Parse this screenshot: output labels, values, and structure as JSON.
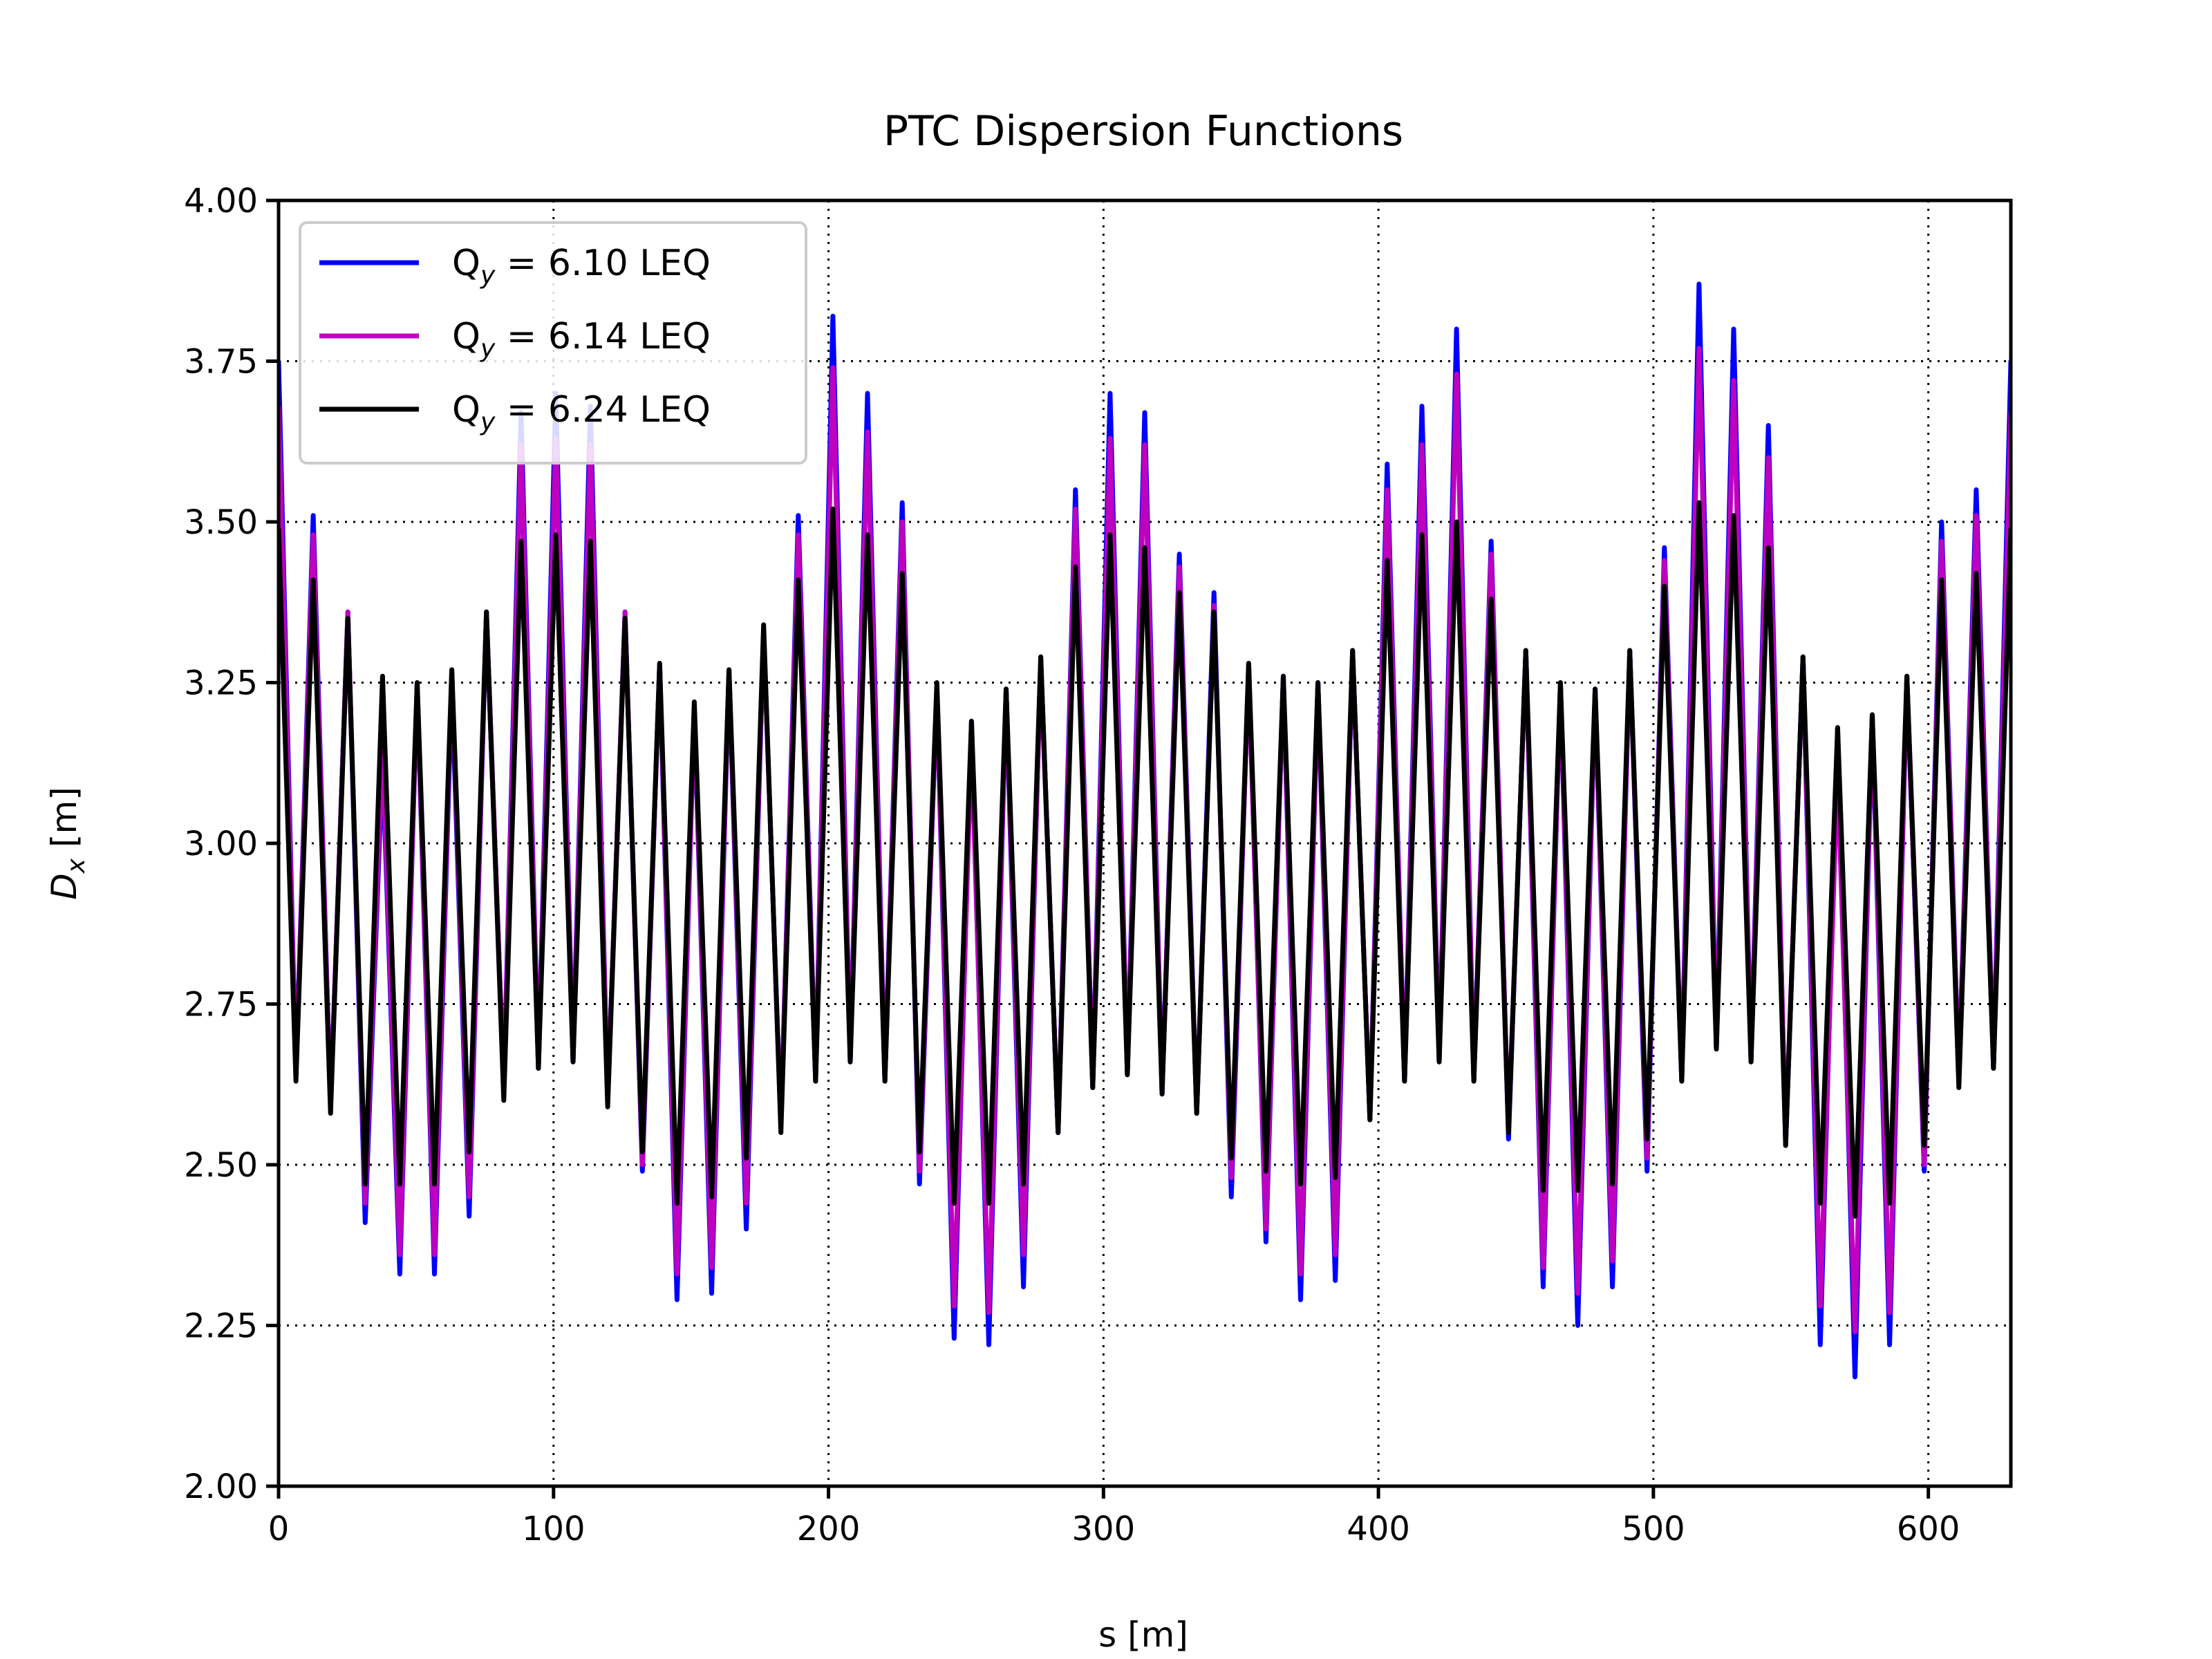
{
  "chart_data": {
    "type": "line",
    "title": "PTC Dispersion Functions",
    "xlabel": "s [m]",
    "ylabel": "D_x [m]",
    "ylabel_parts": {
      "base": "D",
      "sub": "x",
      "unit": " [m]"
    },
    "xlim": [
      0,
      630
    ],
    "ylim": [
      2.0,
      4.0
    ],
    "xticks": [
      0,
      100,
      200,
      300,
      400,
      500,
      600
    ],
    "xtick_labels": [
      "0",
      "100",
      "200",
      "300",
      "400",
      "500",
      "600"
    ],
    "yticks": [
      2.0,
      2.25,
      2.5,
      2.75,
      3.0,
      3.25,
      3.5,
      3.75,
      4.0
    ],
    "ytick_labels": [
      "2.00",
      "2.25",
      "2.50",
      "2.75",
      "3.00",
      "3.25",
      "3.50",
      "3.75",
      "4.00"
    ],
    "grid": true,
    "legend_position": "top-left",
    "cell_length": 6.3,
    "peaks": [
      [
        3.75,
        3.68,
        3.49
      ],
      [
        2.64,
        2.64,
        2.63
      ],
      [
        3.51,
        3.48,
        3.41
      ],
      [
        2.59,
        2.59,
        2.58
      ],
      [
        3.36,
        3.36,
        3.35
      ],
      [
        2.41,
        2.44,
        2.47
      ],
      [
        3.13,
        3.15,
        3.26
      ],
      [
        2.33,
        2.36,
        2.47
      ],
      [
        3.25,
        3.25,
        3.25
      ],
      [
        2.33,
        2.36,
        2.47
      ],
      [
        3.25,
        3.27,
        3.27
      ],
      [
        2.42,
        2.45,
        2.52
      ],
      [
        3.36,
        3.36,
        3.36
      ],
      [
        2.62,
        2.62,
        2.6
      ],
      [
        3.67,
        3.62,
        3.47
      ],
      [
        2.65,
        2.65,
        2.65
      ],
      [
        3.7,
        3.63,
        3.48
      ],
      [
        2.66,
        2.66,
        2.66
      ],
      [
        3.68,
        3.62,
        3.47
      ],
      [
        2.6,
        2.6,
        2.59
      ],
      [
        3.36,
        3.36,
        3.35
      ],
      [
        2.49,
        2.5,
        2.52
      ],
      [
        3.28,
        3.28,
        3.28
      ],
      [
        2.29,
        2.33,
        2.44
      ],
      [
        3.21,
        3.21,
        3.22
      ],
      [
        2.3,
        2.34,
        2.45
      ],
      [
        3.27,
        3.27,
        3.27
      ],
      [
        2.4,
        2.44,
        2.51
      ],
      [
        3.33,
        3.33,
        3.34
      ],
      [
        2.56,
        2.56,
        2.55
      ],
      [
        3.51,
        3.48,
        3.41
      ],
      [
        2.63,
        2.63,
        2.63
      ],
      [
        3.82,
        3.74,
        3.52
      ],
      [
        2.66,
        2.66,
        2.66
      ],
      [
        3.7,
        3.64,
        3.48
      ],
      [
        2.63,
        2.63,
        2.63
      ],
      [
        3.53,
        3.5,
        3.42
      ],
      [
        2.47,
        2.49,
        2.52
      ],
      [
        3.24,
        3.24,
        3.25
      ],
      [
        2.23,
        2.28,
        2.44
      ],
      [
        3.19,
        3.16,
        3.19
      ],
      [
        2.22,
        2.27,
        2.44
      ],
      [
        3.24,
        3.24,
        3.24
      ],
      [
        2.31,
        2.36,
        2.47
      ],
      [
        3.29,
        3.28,
        3.29
      ],
      [
        2.55,
        2.55,
        2.55
      ],
      [
        3.55,
        3.52,
        3.43
      ],
      [
        2.62,
        2.62,
        2.62
      ],
      [
        3.7,
        3.63,
        3.48
      ],
      [
        2.64,
        2.64,
        2.64
      ],
      [
        3.67,
        3.62,
        3.46
      ],
      [
        2.61,
        2.61,
        2.61
      ],
      [
        3.45,
        3.43,
        3.39
      ],
      [
        2.58,
        2.58,
        2.58
      ],
      [
        3.39,
        3.37,
        3.36
      ],
      [
        2.45,
        2.48,
        2.51
      ],
      [
        3.28,
        3.27,
        3.28
      ],
      [
        2.38,
        2.4,
        2.49
      ],
      [
        3.26,
        3.26,
        3.26
      ],
      [
        2.29,
        2.33,
        2.47
      ],
      [
        3.25,
        3.25,
        3.25
      ],
      [
        2.32,
        2.36,
        2.48
      ],
      [
        3.3,
        3.3,
        3.3
      ],
      [
        2.57,
        2.57,
        2.57
      ],
      [
        3.59,
        3.55,
        3.44
      ],
      [
        2.63,
        2.63,
        2.63
      ],
      [
        3.68,
        3.62,
        3.48
      ],
      [
        2.66,
        2.66,
        2.66
      ],
      [
        3.8,
        3.73,
        3.5
      ],
      [
        2.63,
        2.63,
        2.63
      ],
      [
        3.47,
        3.45,
        3.38
      ],
      [
        2.54,
        2.55,
        2.55
      ],
      [
        3.3,
        3.3,
        3.3
      ],
      [
        2.31,
        2.34,
        2.46
      ],
      [
        3.25,
        3.25,
        3.25
      ],
      [
        2.25,
        2.3,
        2.46
      ],
      [
        3.24,
        3.24,
        3.24
      ],
      [
        2.31,
        2.35,
        2.47
      ],
      [
        3.3,
        3.3,
        3.3
      ],
      [
        2.49,
        2.51,
        2.54
      ],
      [
        3.46,
        3.44,
        3.4
      ],
      [
        2.63,
        2.63,
        2.63
      ],
      [
        3.87,
        3.77,
        3.53
      ],
      [
        2.68,
        2.68,
        2.68
      ],
      [
        3.8,
        3.72,
        3.51
      ],
      [
        2.66,
        2.66,
        2.66
      ],
      [
        3.65,
        3.6,
        3.46
      ],
      [
        2.53,
        2.54,
        2.53
      ],
      [
        3.29,
        3.29,
        3.29
      ],
      [
        2.22,
        2.28,
        2.44
      ],
      [
        3.18,
        3.12,
        3.18
      ],
      [
        2.17,
        2.24,
        2.42
      ],
      [
        3.2,
        3.2,
        3.2
      ],
      [
        2.22,
        2.27,
        2.44
      ],
      [
        3.26,
        3.26,
        3.26
      ],
      [
        2.49,
        2.5,
        2.53
      ],
      [
        3.5,
        3.47,
        3.41
      ],
      [
        2.63,
        2.63,
        2.62
      ],
      [
        3.55,
        3.51,
        3.42
      ],
      [
        2.65,
        2.65,
        2.65
      ],
      [
        3.75,
        3.67,
        3.49
      ],
      [
        2.66,
        2.66,
        2.65
      ]
    ],
    "series": [
      {
        "name": "Q_y = 6.10 LEQ",
        "label_parts": {
          "base": "Q",
          "sub": "y",
          "rest": " = 6.10 LEQ"
        },
        "color": "#0000ff",
        "peak_index": 0
      },
      {
        "name": "Q_y = 6.14 LEQ",
        "label_parts": {
          "base": "Q",
          "sub": "y",
          "rest": " = 6.14 LEQ"
        },
        "color": "#bf00bf",
        "peak_index": 1
      },
      {
        "name": "Q_y = 6.24 LEQ",
        "label_parts": {
          "base": "Q",
          "sub": "y",
          "rest": " = 6.24 LEQ"
        },
        "color": "#000000",
        "peak_index": 2
      }
    ]
  }
}
